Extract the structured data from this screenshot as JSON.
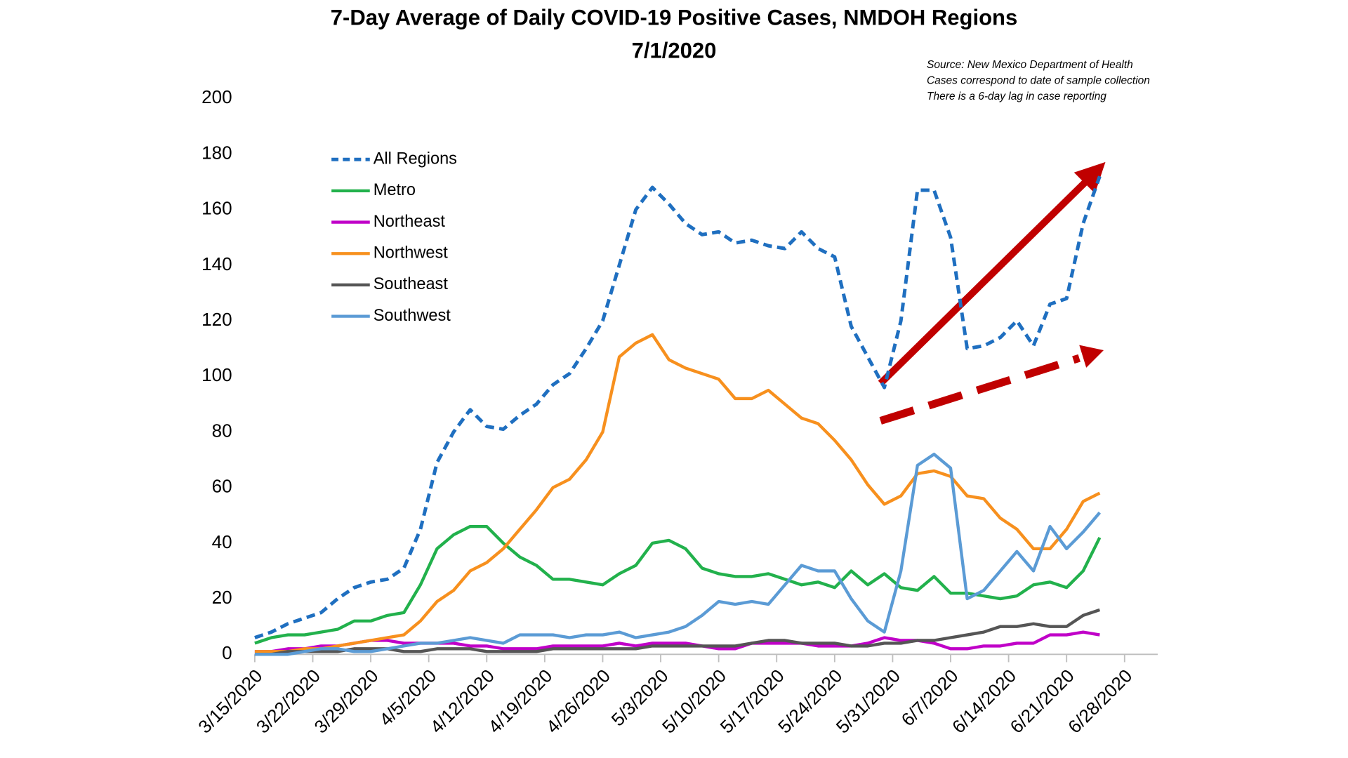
{
  "chart_data": {
    "type": "line",
    "title": "7-Day Average of Daily COVID-19 Positive Cases, NMDOH Regions",
    "subtitle": "7/1/2020",
    "annotations": [
      "Source: New Mexico Department of Health",
      "Cases correspond to date of sample collection",
      "There is a 6-day lag in case reporting"
    ],
    "x": [
      "3/15/2020",
      "3/17/2020",
      "3/19/2020",
      "3/21/2020",
      "3/23/2020",
      "3/25/2020",
      "3/27/2020",
      "3/29/2020",
      "3/31/2020",
      "4/2/2020",
      "4/4/2020",
      "4/6/2020",
      "4/8/2020",
      "4/10/2020",
      "4/12/2020",
      "4/14/2020",
      "4/16/2020",
      "4/18/2020",
      "4/20/2020",
      "4/22/2020",
      "4/24/2020",
      "4/26/2020",
      "4/28/2020",
      "4/30/2020",
      "5/2/2020",
      "5/4/2020",
      "5/6/2020",
      "5/8/2020",
      "5/10/2020",
      "5/12/2020",
      "5/14/2020",
      "5/16/2020",
      "5/18/2020",
      "5/20/2020",
      "5/22/2020",
      "5/24/2020",
      "5/26/2020",
      "5/28/2020",
      "5/30/2020",
      "6/1/2020",
      "6/3/2020",
      "6/5/2020",
      "6/7/2020",
      "6/9/2020",
      "6/11/2020",
      "6/13/2020",
      "6/15/2020",
      "6/17/2020",
      "6/19/2020",
      "6/21/2020",
      "6/23/2020",
      "6/25/2020"
    ],
    "series": [
      {
        "name": "All Regions",
        "color": "#1f6fc0",
        "style": "dashed",
        "values": [
          6,
          8,
          11,
          13,
          15,
          20,
          24,
          26,
          27,
          31,
          45,
          69,
          80,
          88,
          82,
          81,
          86,
          90,
          97,
          101,
          110,
          120,
          140,
          160,
          168,
          162,
          155,
          151,
          152,
          148,
          149,
          147,
          146,
          152,
          146,
          143,
          118,
          107,
          96,
          120,
          167,
          167,
          150,
          110,
          111,
          114,
          120,
          111,
          126,
          128,
          155,
          172
        ]
      },
      {
        "name": "Metro",
        "color": "#22b14c",
        "style": "solid",
        "values": [
          4,
          6,
          7,
          7,
          8,
          9,
          12,
          12,
          14,
          15,
          25,
          38,
          43,
          46,
          46,
          40,
          35,
          32,
          27,
          27,
          26,
          25,
          29,
          32,
          40,
          41,
          38,
          31,
          29,
          28,
          28,
          29,
          27,
          25,
          26,
          24,
          30,
          25,
          29,
          24,
          23,
          28,
          22,
          22,
          21,
          20,
          21,
          25,
          26,
          24,
          30,
          42
        ]
      },
      {
        "name": "Northeast",
        "color": "#c000c8",
        "style": "solid",
        "values": [
          1,
          1,
          2,
          2,
          3,
          3,
          4,
          5,
          5,
          4,
          4,
          4,
          4,
          3,
          3,
          2,
          2,
          2,
          3,
          3,
          3,
          3,
          4,
          3,
          4,
          4,
          4,
          3,
          2,
          2,
          4,
          4,
          4,
          4,
          3,
          3,
          3,
          4,
          6,
          5,
          5,
          4,
          2,
          2,
          3,
          3,
          4,
          4,
          7,
          7,
          8,
          7
        ]
      },
      {
        "name": "Northwest",
        "color": "#f7901e",
        "style": "solid",
        "values": [
          1,
          1,
          1,
          2,
          2,
          3,
          4,
          5,
          6,
          7,
          12,
          19,
          23,
          30,
          33,
          38,
          45,
          52,
          60,
          63,
          70,
          80,
          107,
          112,
          115,
          106,
          103,
          101,
          99,
          92,
          92,
          95,
          90,
          85,
          83,
          77,
          70,
          61,
          54,
          57,
          65,
          66,
          64,
          57,
          56,
          49,
          45,
          38,
          38,
          45,
          55,
          58
        ]
      },
      {
        "name": "Southeast",
        "color": "#555555",
        "style": "solid",
        "values": [
          0,
          0,
          1,
          1,
          1,
          1,
          2,
          2,
          2,
          1,
          1,
          2,
          2,
          2,
          1,
          1,
          1,
          1,
          2,
          2,
          2,
          2,
          2,
          2,
          3,
          3,
          3,
          3,
          3,
          3,
          4,
          5,
          5,
          4,
          4,
          4,
          3,
          3,
          4,
          4,
          5,
          5,
          6,
          7,
          8,
          10,
          10,
          11,
          10,
          10,
          14,
          16
        ]
      },
      {
        "name": "Southwest",
        "color": "#5b9bd5",
        "style": "solid",
        "values": [
          0,
          0,
          0,
          1,
          2,
          2,
          1,
          1,
          2,
          3,
          4,
          4,
          5,
          6,
          5,
          4,
          7,
          7,
          7,
          6,
          7,
          7,
          8,
          6,
          7,
          8,
          10,
          14,
          19,
          18,
          19,
          18,
          25,
          32,
          30,
          30,
          20,
          12,
          8,
          30,
          68,
          72,
          67,
          20,
          23,
          30,
          37,
          30,
          46,
          38,
          44,
          51
        ]
      }
    ],
    "xlim": [
      "3/15/2020",
      "7/2/2020"
    ],
    "xticks": [
      "3/15/2020",
      "3/22/2020",
      "3/29/2020",
      "4/5/2020",
      "4/12/2020",
      "4/19/2020",
      "4/26/2020",
      "5/3/2020",
      "5/10/2020",
      "5/17/2020",
      "5/24/2020",
      "5/31/2020",
      "6/7/2020",
      "6/14/2020",
      "6/21/2020",
      "6/28/2020"
    ],
    "ylim": [
      0,
      200
    ],
    "yticks": [
      0,
      20,
      40,
      60,
      80,
      100,
      120,
      140,
      160,
      180,
      200
    ],
    "grid": false,
    "legend": "upper left"
  }
}
